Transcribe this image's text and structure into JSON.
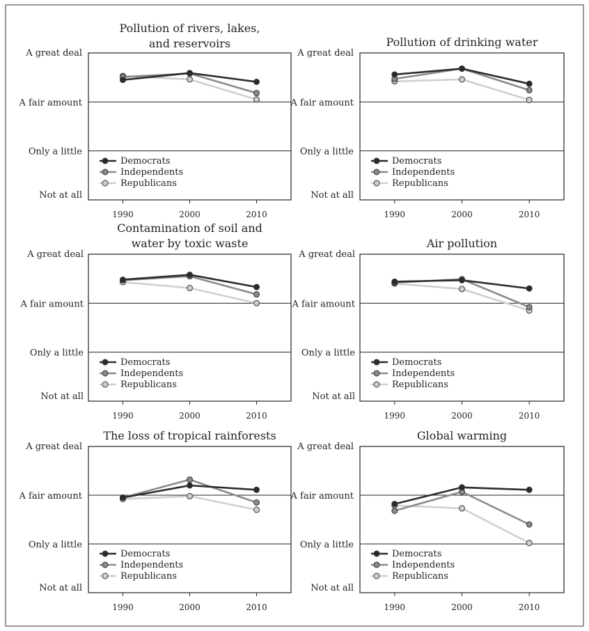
{
  "chart_data": [
    {
      "type": "line",
      "title": [
        "Pollution of rivers, lakes,",
        "and reservoirs"
      ],
      "categories": [
        "1990",
        "2000",
        "2010"
      ],
      "y_levels": [
        "Not at all",
        "Only a little",
        "A fair amount",
        "A great deal"
      ],
      "ylim": [
        1,
        4
      ],
      "series": [
        {
          "name": "Democrats",
          "values": [
            3.45,
            3.59,
            3.41
          ]
        },
        {
          "name": "Independents",
          "values": [
            3.51,
            3.58,
            3.18
          ]
        },
        {
          "name": "Republicans",
          "values": [
            3.53,
            3.46,
            3.05
          ]
        }
      ]
    },
    {
      "type": "line",
      "title": [
        "Pollution of drinking water"
      ],
      "categories": [
        "1990",
        "2000",
        "2010"
      ],
      "y_levels": [
        "Not at all",
        "Only a little",
        "A fair amount",
        "A great deal"
      ],
      "ylim": [
        1,
        4
      ],
      "series": [
        {
          "name": "Democrats",
          "values": [
            3.56,
            3.68,
            3.37
          ]
        },
        {
          "name": "Independents",
          "values": [
            3.47,
            3.68,
            3.24
          ]
        },
        {
          "name": "Republicans",
          "values": [
            3.42,
            3.46,
            3.04
          ]
        }
      ]
    },
    {
      "type": "line",
      "title": [
        "Contamination of soil and",
        "water by toxic waste"
      ],
      "categories": [
        "1990",
        "2000",
        "2010"
      ],
      "y_levels": [
        "Not at all",
        "Only a little",
        "A fair amount",
        "A great deal"
      ],
      "ylim": [
        1,
        4
      ],
      "series": [
        {
          "name": "Democrats",
          "values": [
            3.48,
            3.58,
            3.33
          ]
        },
        {
          "name": "Independents",
          "values": [
            3.47,
            3.55,
            3.18
          ]
        },
        {
          "name": "Republicans",
          "values": [
            3.43,
            3.31,
            3.0
          ]
        }
      ]
    },
    {
      "type": "line",
      "title": [
        "Air pollution"
      ],
      "categories": [
        "1990",
        "2000",
        "2010"
      ],
      "y_levels": [
        "Not at all",
        "Only a little",
        "A fair amount",
        "A great deal"
      ],
      "ylim": [
        1,
        4
      ],
      "series": [
        {
          "name": "Democrats",
          "values": [
            3.44,
            3.47,
            3.3
          ]
        },
        {
          "name": "Independents",
          "values": [
            3.42,
            3.49,
            2.92
          ]
        },
        {
          "name": "Republicans",
          "values": [
            3.4,
            3.29,
            2.85
          ]
        }
      ]
    },
    {
      "type": "line",
      "title": [
        "The loss of tropical rainforests"
      ],
      "categories": [
        "1990",
        "2000",
        "2010"
      ],
      "y_levels": [
        "Not at all",
        "Only a little",
        "A fair amount",
        "A great deal"
      ],
      "ylim": [
        1,
        4
      ],
      "series": [
        {
          "name": "Democrats",
          "values": [
            2.95,
            3.2,
            3.11
          ]
        },
        {
          "name": "Independents",
          "values": [
            2.95,
            3.32,
            2.85
          ]
        },
        {
          "name": "Republicans",
          "values": [
            2.92,
            2.98,
            2.7
          ]
        }
      ]
    },
    {
      "type": "line",
      "title": [
        "Global warming"
      ],
      "categories": [
        "1990",
        "2000",
        "2010"
      ],
      "y_levels": [
        "Not at all",
        "Only a little",
        "A fair amount",
        "A great deal"
      ],
      "ylim": [
        1,
        4
      ],
      "series": [
        {
          "name": "Democrats",
          "values": [
            2.82,
            3.16,
            3.11
          ]
        },
        {
          "name": "Independents",
          "values": [
            2.68,
            3.07,
            2.4
          ]
        },
        {
          "name": "Republicans",
          "values": [
            2.79,
            2.73,
            2.02
          ]
        }
      ]
    }
  ],
  "colors": {
    "Democrats": "#2b2b2b",
    "Independents": "#8a8a8a",
    "Republicans": "#cfcfcf",
    "border": "#333333"
  }
}
